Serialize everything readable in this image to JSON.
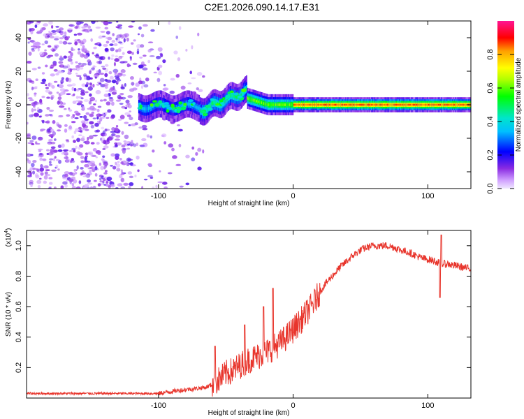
{
  "title": "C2E1.2026.090.14.17.E31",
  "colors": {
    "background": "#ffffff",
    "noise": "#8a2be2",
    "snr_line": "#e8352c",
    "axis": "#000000"
  },
  "chart_data": [
    {
      "type": "heatmap",
      "title": "C2E1.2026.090.14.17.E31",
      "xlabel": "Height of straight line (km)",
      "ylabel": "Frequency (Hz)",
      "xlim": [
        -198,
        132
      ],
      "ylim": [
        -50,
        50
      ],
      "xticks": [
        -100,
        0,
        100
      ],
      "yticks": [
        -40,
        -20,
        0,
        20,
        40
      ],
      "colorbar": {
        "label": "Normalized spectral amplitude",
        "range": [
          0,
          1
        ],
        "ticks": [
          0.0,
          0.2,
          0.4,
          0.6,
          0.8
        ]
      },
      "features": [
        {
          "name": "noise-scatter",
          "x_range": [
            -198,
            -70
          ],
          "freq_range": [
            -50,
            50
          ],
          "amplitude": 0.15
        },
        {
          "name": "signal-track-onset",
          "x_range": [
            -115,
            -70
          ],
          "center_freq": -1,
          "amplitude": 0.35
        },
        {
          "name": "signal-track-rising",
          "x_range": [
            -70,
            -35
          ],
          "center_freq_start": -4,
          "center_freq_end": 8,
          "amplitude": 0.45
        },
        {
          "name": "signal-track-stable",
          "x_range": [
            -35,
            132
          ],
          "center_freq": 0,
          "amplitude": 0.85
        }
      ]
    },
    {
      "type": "line",
      "xlabel": "Height of straight line (km)",
      "ylabel": "SNR (10 * v/v)",
      "yscale_label": "(x10",
      "yscale_exp": "4",
      "yscale_close": ")",
      "xlim": [
        -198,
        132
      ],
      "ylim": [
        0,
        1.1
      ],
      "xticks": [
        -100,
        0,
        100
      ],
      "yticks": [
        0.2,
        0.4,
        0.6,
        0.8,
        1.0
      ],
      "series": [
        {
          "name": "SNR",
          "x": [
            -198,
            -160,
            -120,
            -100,
            -85,
            -75,
            -65,
            -60,
            -55,
            -50,
            -45,
            -40,
            -35,
            -30,
            -25,
            -20,
            -15,
            -10,
            -5,
            0,
            5,
            10,
            15,
            20,
            25,
            30,
            35,
            40,
            45,
            50,
            55,
            60,
            65,
            70,
            75,
            80,
            85,
            90,
            95,
            100,
            105,
            110,
            115,
            120,
            125,
            130
          ],
          "y": [
            0.03,
            0.03,
            0.03,
            0.03,
            0.05,
            0.06,
            0.07,
            0.09,
            0.12,
            0.16,
            0.18,
            0.21,
            0.24,
            0.26,
            0.28,
            0.3,
            0.33,
            0.36,
            0.4,
            0.45,
            0.5,
            0.56,
            0.62,
            0.7,
            0.76,
            0.81,
            0.86,
            0.9,
            0.94,
            0.97,
            0.99,
            1.0,
            1.0,
            1.0,
            0.99,
            0.97,
            0.96,
            0.94,
            0.92,
            0.91,
            0.9,
            0.88,
            0.88,
            0.87,
            0.86,
            0.85
          ]
        }
      ],
      "spikes": [
        {
          "x": -58,
          "y": 0.34
        },
        {
          "x": -36,
          "y": 0.48
        },
        {
          "x": -22,
          "y": 0.6
        },
        {
          "x": -15,
          "y": 0.72
        },
        {
          "x": 110,
          "y": 1.07
        },
        {
          "x": 109,
          "y": 0.66
        }
      ]
    }
  ]
}
